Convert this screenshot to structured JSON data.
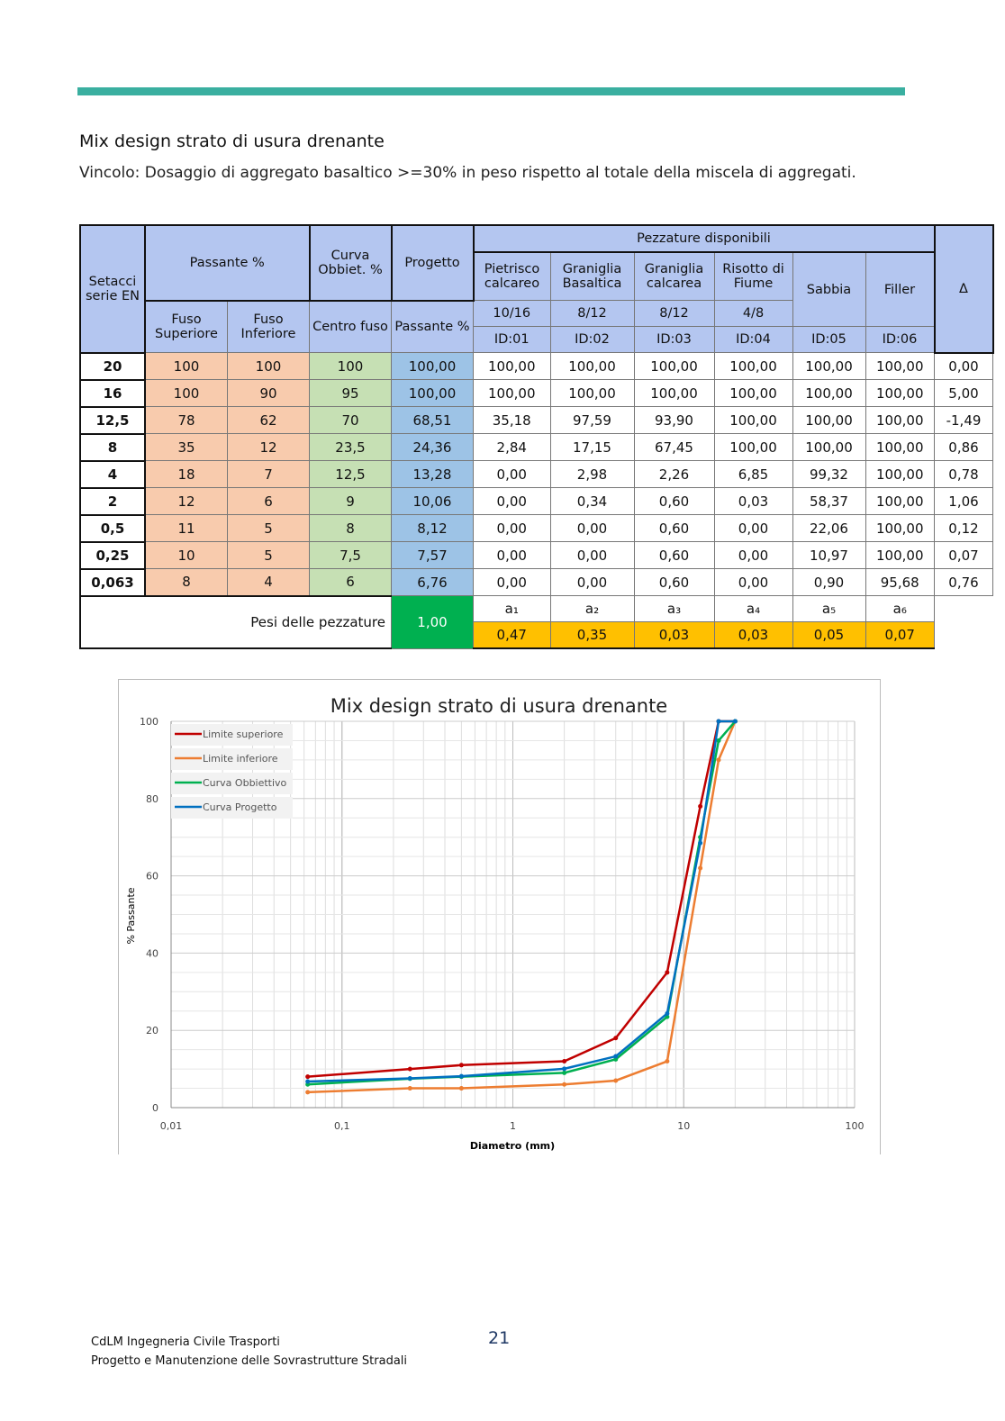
{
  "title": "Mix design strato di usura drenante",
  "constraint": "Vincolo: Dosaggio di aggregato basaltico >=30% in peso rispetto al totale della miscela di aggregati.",
  "table": {
    "h_setacci": "Setacci serie EN",
    "h_passante": "Passante %",
    "h_curva": "Curva Obbiet. %",
    "h_progetto": "Progetto",
    "h_pezzature": "Pezzature disponibili",
    "h_fuso_sup": "Fuso Superiore",
    "h_fuso_inf": "Fuso Inferiore",
    "h_centro": "Centro fuso",
    "h_pass": "Passante %",
    "h_delta": "Δ",
    "materials": [
      {
        "name": "Pietrisco calcareo",
        "size": "10/16",
        "id": "ID:01"
      },
      {
        "name": "Graniglia Basaltica",
        "size": "8/12",
        "id": "ID:02"
      },
      {
        "name": "Graniglia calcarea",
        "size": "8/12",
        "id": "ID:03"
      },
      {
        "name": "Risotto di Fiume",
        "size": "4/8",
        "id": "ID:04"
      },
      {
        "name": "Sabbia",
        "size": "",
        "id": "ID:05"
      },
      {
        "name": "Filler",
        "size": "",
        "id": "ID:06"
      }
    ],
    "rows": [
      [
        "20",
        "100",
        "100",
        "100",
        "100,00",
        "100,00",
        "100,00",
        "100,00",
        "100,00",
        "100,00",
        "100,00",
        "0,00"
      ],
      [
        "16",
        "100",
        "90",
        "95",
        "100,00",
        "100,00",
        "100,00",
        "100,00",
        "100,00",
        "100,00",
        "100,00",
        "5,00"
      ],
      [
        "12,5",
        "78",
        "62",
        "70",
        "68,51",
        "35,18",
        "97,59",
        "93,90",
        "100,00",
        "100,00",
        "100,00",
        "-1,49"
      ],
      [
        "8",
        "35",
        "12",
        "23,5",
        "24,36",
        "2,84",
        "17,15",
        "67,45",
        "100,00",
        "100,00",
        "100,00",
        "0,86"
      ],
      [
        "4",
        "18",
        "7",
        "12,5",
        "13,28",
        "0,00",
        "2,98",
        "2,26",
        "6,85",
        "99,32",
        "100,00",
        "0,78"
      ],
      [
        "2",
        "12",
        "6",
        "9",
        "10,06",
        "0,00",
        "0,34",
        "0,60",
        "0,03",
        "58,37",
        "100,00",
        "1,06"
      ],
      [
        "0,5",
        "11",
        "5",
        "8",
        "8,12",
        "0,00",
        "0,00",
        "0,60",
        "0,00",
        "22,06",
        "100,00",
        "0,12"
      ],
      [
        "0,25",
        "10",
        "5",
        "7,5",
        "7,57",
        "0,00",
        "0,00",
        "0,60",
        "0,00",
        "10,97",
        "100,00",
        "0,07"
      ],
      [
        "0,063",
        "8",
        "4",
        "6",
        "6,76",
        "0,00",
        "0,00",
        "0,60",
        "0,00",
        "0,90",
        "95,68",
        "0,76"
      ]
    ],
    "weights_label": "Pesi delle pezzature",
    "weights_sum": "1,00",
    "weight_names": [
      "a₁",
      "a₂",
      "a₃",
      "a₄",
      "a₅",
      "a₆"
    ],
    "weights": [
      "0,47",
      "0,35",
      "0,03",
      "0,03",
      "0,05",
      "0,07"
    ]
  },
  "chart_data": {
    "type": "line",
    "title": "Mix design strato di usura drenante",
    "xlabel": "Diametro (mm)",
    "ylabel": "% Passante",
    "xscale": "log",
    "xlim": [
      0.01,
      100
    ],
    "ylim": [
      0,
      100
    ],
    "xticks": [
      "0,01",
      "0,1",
      "1",
      "10",
      "100"
    ],
    "yticks": [
      "0",
      "20",
      "40",
      "60",
      "80",
      "100"
    ],
    "legend": "top-left",
    "x": [
      20,
      16,
      12.5,
      8,
      4,
      2,
      0.5,
      0.25,
      0.063
    ],
    "series": [
      {
        "name": "Limite superiore",
        "color": "#c00000",
        "values": [
          100,
          100,
          78,
          35,
          18,
          12,
          11,
          10,
          8
        ]
      },
      {
        "name": "Limite inferiore",
        "color": "#ed7d31",
        "values": [
          100,
          90,
          62,
          12,
          7,
          6,
          5,
          5,
          4
        ]
      },
      {
        "name": "Curva Obbiettivo",
        "color": "#00b050",
        "values": [
          100,
          95,
          70,
          23.5,
          12.5,
          9,
          8,
          7.5,
          6
        ]
      },
      {
        "name": "Curva Progetto",
        "color": "#0070c0",
        "values": [
          100,
          100,
          68.51,
          24.36,
          13.28,
          10.06,
          8.12,
          7.57,
          6.76
        ]
      }
    ]
  },
  "footer": {
    "line1": "CdLM Ingegneria Civile Trasporti",
    "line2": "Progetto e Manutenzione delle Sovrastrutture Stradali",
    "page": "21"
  }
}
